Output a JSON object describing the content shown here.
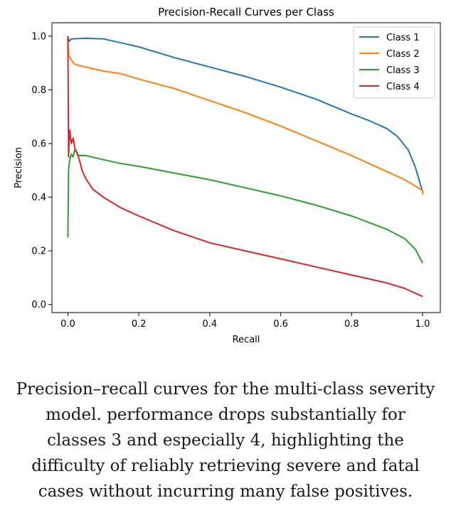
{
  "chart_data": {
    "type": "line",
    "title": "Precision-Recall Curves per Class",
    "xlabel": "Recall",
    "ylabel": "Precision",
    "xlim": [
      -0.045,
      1.05
    ],
    "ylim": [
      -0.03,
      1.05
    ],
    "xticks": [
      "0.0",
      "0.2",
      "0.4",
      "0.6",
      "0.8",
      "1.0"
    ],
    "yticks": [
      "0.0",
      "0.2",
      "0.4",
      "0.6",
      "0.8",
      "1.0"
    ],
    "grid": false,
    "legend_position": "top-right",
    "series": [
      {
        "name": "Class 1",
        "color": "#1f77b4",
        "points": [
          [
            0.0,
            1.0
          ],
          [
            0.003,
            0.98
          ],
          [
            0.01,
            0.99
          ],
          [
            0.05,
            0.992
          ],
          [
            0.1,
            0.99
          ],
          [
            0.15,
            0.975
          ],
          [
            0.2,
            0.96
          ],
          [
            0.3,
            0.92
          ],
          [
            0.4,
            0.885
          ],
          [
            0.5,
            0.85
          ],
          [
            0.6,
            0.81
          ],
          [
            0.7,
            0.765
          ],
          [
            0.8,
            0.71
          ],
          [
            0.85,
            0.685
          ],
          [
            0.9,
            0.655
          ],
          [
            0.93,
            0.625
          ],
          [
            0.96,
            0.575
          ],
          [
            0.98,
            0.51
          ],
          [
            1.0,
            0.42
          ]
        ]
      },
      {
        "name": "Class 2",
        "color": "#ff7f0e",
        "points": [
          [
            0.0,
            0.99
          ],
          [
            0.002,
            0.93
          ],
          [
            0.01,
            0.91
          ],
          [
            0.02,
            0.895
          ],
          [
            0.05,
            0.885
          ],
          [
            0.1,
            0.87
          ],
          [
            0.15,
            0.86
          ],
          [
            0.2,
            0.84
          ],
          [
            0.3,
            0.805
          ],
          [
            0.4,
            0.76
          ],
          [
            0.5,
            0.715
          ],
          [
            0.6,
            0.665
          ],
          [
            0.7,
            0.61
          ],
          [
            0.8,
            0.555
          ],
          [
            0.9,
            0.495
          ],
          [
            0.95,
            0.465
          ],
          [
            1.0,
            0.425
          ],
          [
            1.0,
            0.41
          ]
        ]
      },
      {
        "name": "Class 3",
        "color": "#2ca02c",
        "points": [
          [
            0.0,
            0.25
          ],
          [
            0.002,
            0.5
          ],
          [
            0.005,
            0.54
          ],
          [
            0.01,
            0.56
          ],
          [
            0.015,
            0.55
          ],
          [
            0.02,
            0.58
          ],
          [
            0.03,
            0.555
          ],
          [
            0.05,
            0.555
          ],
          [
            0.1,
            0.54
          ],
          [
            0.15,
            0.525
          ],
          [
            0.2,
            0.515
          ],
          [
            0.3,
            0.49
          ],
          [
            0.4,
            0.465
          ],
          [
            0.5,
            0.435
          ],
          [
            0.6,
            0.405
          ],
          [
            0.7,
            0.37
          ],
          [
            0.8,
            0.33
          ],
          [
            0.9,
            0.28
          ],
          [
            0.95,
            0.245
          ],
          [
            0.98,
            0.205
          ],
          [
            1.0,
            0.155
          ]
        ]
      },
      {
        "name": "Class 4",
        "color": "#d62728",
        "points": [
          [
            0.0,
            1.0
          ],
          [
            0.002,
            0.55
          ],
          [
            0.005,
            0.65
          ],
          [
            0.01,
            0.6
          ],
          [
            0.015,
            0.62
          ],
          [
            0.02,
            0.58
          ],
          [
            0.03,
            0.55
          ],
          [
            0.04,
            0.5
          ],
          [
            0.05,
            0.47
          ],
          [
            0.07,
            0.43
          ],
          [
            0.1,
            0.4
          ],
          [
            0.15,
            0.36
          ],
          [
            0.2,
            0.33
          ],
          [
            0.3,
            0.275
          ],
          [
            0.4,
            0.23
          ],
          [
            0.5,
            0.2
          ],
          [
            0.6,
            0.17
          ],
          [
            0.7,
            0.14
          ],
          [
            0.8,
            0.11
          ],
          [
            0.9,
            0.08
          ],
          [
            0.95,
            0.06
          ],
          [
            1.0,
            0.03
          ]
        ]
      }
    ]
  },
  "caption": "Precision–recall curves for the multi-class severity model. performance drops substantially for classes 3 and especially 4, highlighting the difficulty of reliably retrieving severe and fatal cases without incurring many false positives."
}
